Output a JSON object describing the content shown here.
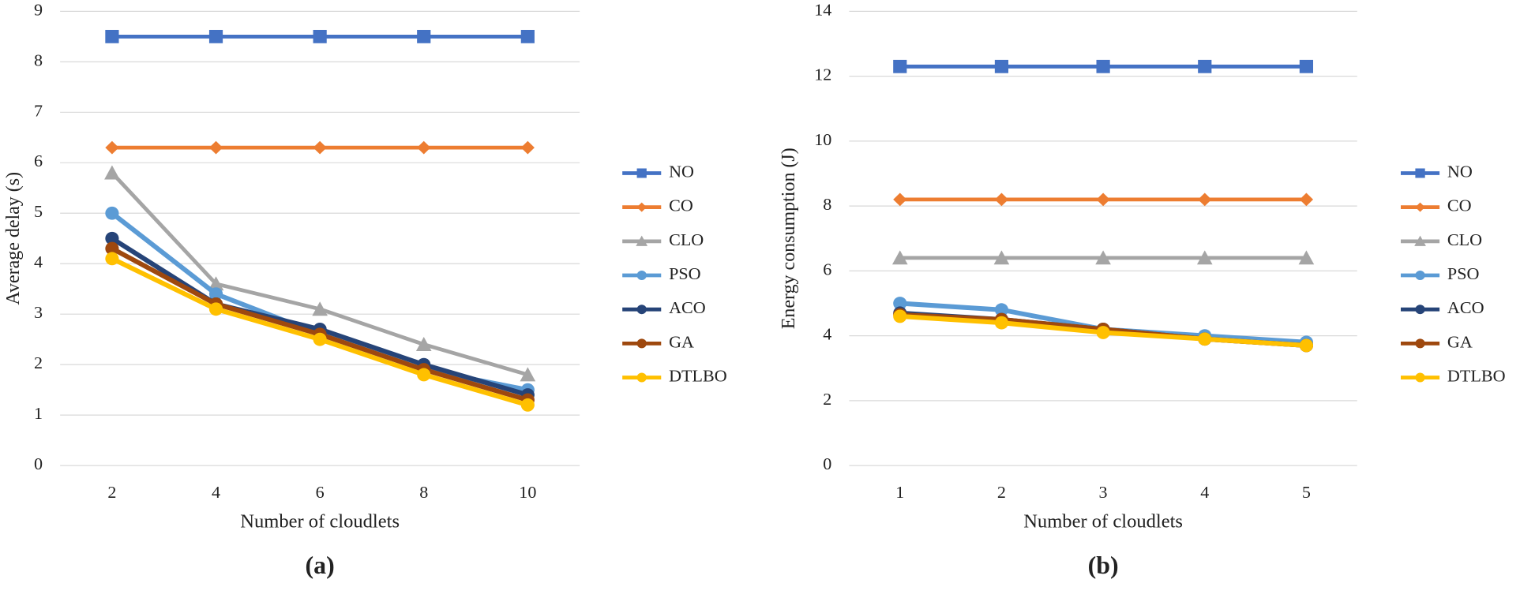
{
  "chart_data": [
    {
      "type": "line",
      "caption": "(a)",
      "x_label": "Number of cloudlets",
      "y_label": "Average delay (s)",
      "categories": [
        2,
        4,
        6,
        8,
        10
      ],
      "ylim": [
        0,
        9
      ],
      "yticks": [
        0,
        1,
        2,
        3,
        4,
        5,
        6,
        7,
        8,
        9
      ],
      "grid": true,
      "legend": "right",
      "series": [
        {
          "name": "NO",
          "color": "#4472c4",
          "marker": "square",
          "values": [
            8.5,
            8.5,
            8.5,
            8.5,
            8.5
          ]
        },
        {
          "name": "CO",
          "color": "#ed7d31",
          "marker": "diamond",
          "values": [
            6.3,
            6.3,
            6.3,
            6.3,
            6.3
          ]
        },
        {
          "name": "CLO",
          "color": "#a5a5a5",
          "marker": "triangle",
          "values": [
            5.8,
            3.6,
            3.1,
            2.4,
            1.8
          ]
        },
        {
          "name": "PSO",
          "color": "#5b9bd5",
          "marker": "circle",
          "values": [
            5.0,
            3.4,
            2.6,
            1.9,
            1.5
          ]
        },
        {
          "name": "ACO",
          "color": "#264478",
          "marker": "circle",
          "values": [
            4.5,
            3.2,
            2.7,
            2.0,
            1.4
          ]
        },
        {
          "name": "GA",
          "color": "#9e480e",
          "marker": "circle",
          "values": [
            4.3,
            3.2,
            2.6,
            1.9,
            1.3
          ]
        },
        {
          "name": "DTLBO",
          "color": "#ffc000",
          "marker": "circle",
          "values": [
            4.1,
            3.1,
            2.5,
            1.8,
            1.2
          ]
        }
      ]
    },
    {
      "type": "line",
      "caption": "(b)",
      "x_label": "Number of cloudlets",
      "y_label": "Energy consumption (J)",
      "categories": [
        1,
        2,
        3,
        4,
        5
      ],
      "ylim": [
        0,
        14
      ],
      "yticks": [
        0,
        2,
        4,
        6,
        8,
        10,
        12,
        14
      ],
      "grid": true,
      "legend": "right",
      "series": [
        {
          "name": "NO",
          "color": "#4472c4",
          "marker": "square",
          "values": [
            12.3,
            12.3,
            12.3,
            12.3,
            12.3
          ]
        },
        {
          "name": "CO",
          "color": "#ed7d31",
          "marker": "diamond",
          "values": [
            8.2,
            8.2,
            8.2,
            8.2,
            8.2
          ]
        },
        {
          "name": "CLO",
          "color": "#a5a5a5",
          "marker": "triangle",
          "values": [
            6.4,
            6.4,
            6.4,
            6.4,
            6.4
          ]
        },
        {
          "name": "PSO",
          "color": "#5b9bd5",
          "marker": "circle",
          "values": [
            5.0,
            4.8,
            4.2,
            4.0,
            3.8
          ]
        },
        {
          "name": "ACO",
          "color": "#264478",
          "marker": "circle",
          "values": [
            4.7,
            4.5,
            4.2,
            3.9,
            3.7
          ]
        },
        {
          "name": "GA",
          "color": "#9e480e",
          "marker": "circle",
          "values": [
            4.65,
            4.5,
            4.2,
            3.9,
            3.7
          ]
        },
        {
          "name": "DTLBO",
          "color": "#ffc000",
          "marker": "circle",
          "values": [
            4.6,
            4.4,
            4.1,
            3.9,
            3.7
          ]
        }
      ]
    }
  ]
}
